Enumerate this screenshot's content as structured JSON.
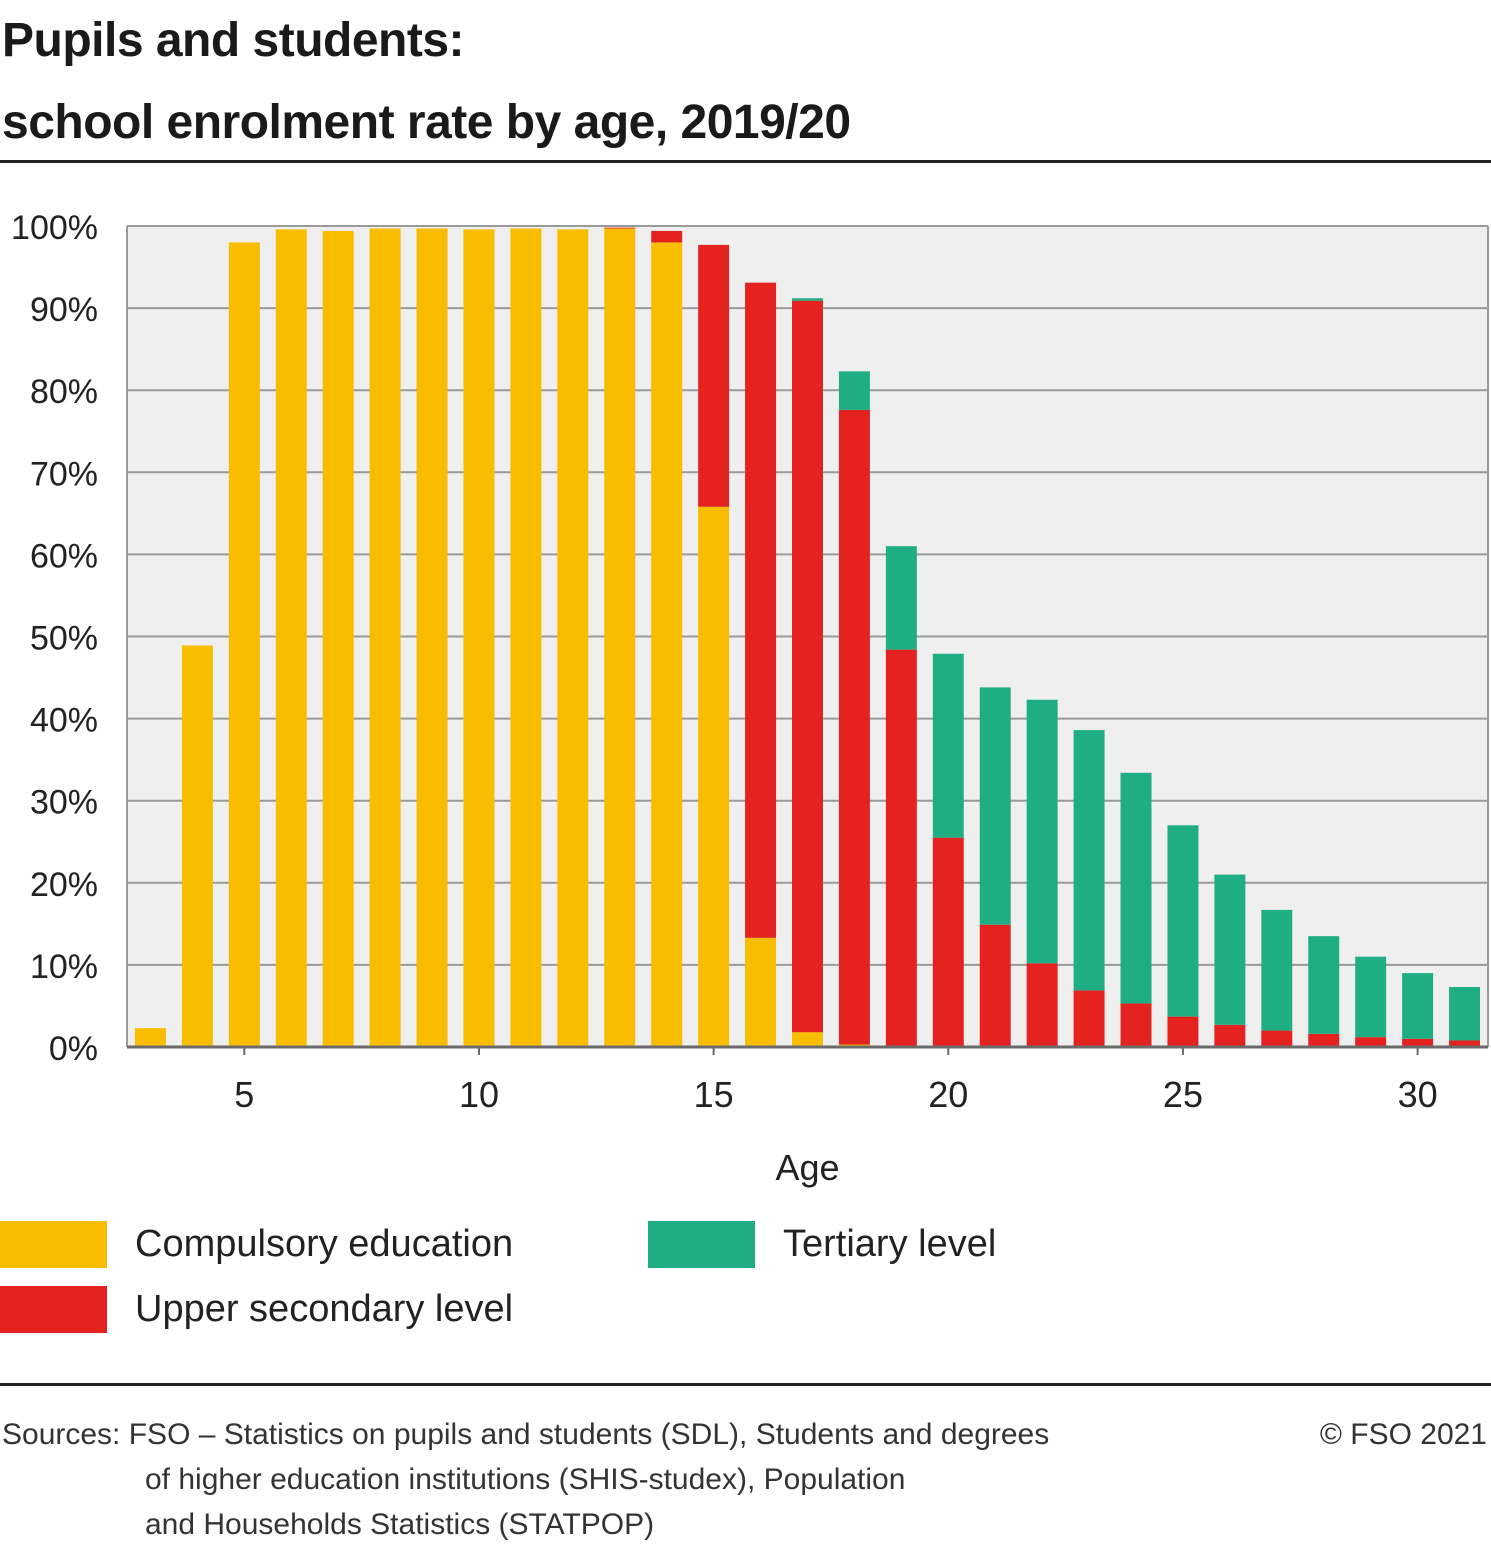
{
  "header": {
    "title_line1": "Pupils and students:",
    "title_line2": "school enrolment rate by age, 2019/20"
  },
  "legend": {
    "compulsory": "Compulsory education",
    "tertiary": "Tertiary level",
    "upper_secondary": "Upper secondary level"
  },
  "footer": {
    "sources_prefix": "Sources:",
    "sources_line1": "FSO – Statistics on pupils and students (SDL), Students and degrees",
    "sources_line2": "of higher education institutions (SHIS-studex), Population",
    "sources_line3": "and Households Statistics (STATPOP)",
    "copyright": "© FSO 2021"
  },
  "colors": {
    "compulsory": "#f9bd00",
    "upper_secondary": "#e42320",
    "tertiary": "#1fae84",
    "plot_background": "#efefef",
    "grid": "#9a9a9a"
  },
  "chart_data": {
    "type": "bar",
    "stacked": true,
    "title": "Pupils and students: school enrolment rate by age, 2019/20",
    "xlabel": "Age",
    "ylabel": "",
    "x": [
      3,
      4,
      5,
      6,
      7,
      8,
      9,
      10,
      11,
      12,
      13,
      14,
      15,
      16,
      17,
      18,
      19,
      20,
      21,
      22,
      23,
      24,
      25,
      26,
      27,
      28,
      29,
      30,
      31
    ],
    "x_ticks": [
      5,
      10,
      15,
      20,
      25,
      30
    ],
    "ylim": [
      0,
      100
    ],
    "y_ticks": [
      0,
      10,
      20,
      30,
      40,
      50,
      60,
      70,
      80,
      90,
      100
    ],
    "y_tick_labels": [
      "0%",
      "10%",
      "20%",
      "30%",
      "40%",
      "50%",
      "60%",
      "70%",
      "80%",
      "90%",
      "100%"
    ],
    "grid": true,
    "legend_position": "bottom",
    "series": [
      {
        "name": "Compulsory education",
        "values": [
          2.3,
          48.9,
          98.0,
          99.6,
          99.4,
          99.7,
          99.7,
          99.6,
          99.7,
          99.6,
          99.7,
          98.0,
          65.8,
          13.3,
          1.8,
          0.3,
          0,
          0,
          0,
          0,
          0,
          0,
          0,
          0,
          0,
          0,
          0,
          0,
          0
        ]
      },
      {
        "name": "Upper secondary level",
        "values": [
          0,
          0,
          0,
          0,
          0,
          0,
          0,
          0,
          0,
          0,
          0.1,
          1.4,
          31.9,
          79.8,
          89.1,
          77.3,
          48.4,
          25.5,
          14.9,
          10.2,
          6.9,
          5.3,
          3.7,
          2.7,
          2.0,
          1.6,
          1.2,
          1.0,
          0.8
        ]
      },
      {
        "name": "Tertiary level",
        "values": [
          0,
          0,
          0,
          0,
          0,
          0,
          0,
          0,
          0,
          0,
          0,
          0,
          0,
          0,
          0.3,
          4.7,
          12.6,
          22.4,
          28.9,
          32.1,
          31.7,
          28.1,
          23.3,
          18.3,
          14.7,
          11.9,
          9.8,
          8.0,
          6.5
        ]
      }
    ]
  }
}
